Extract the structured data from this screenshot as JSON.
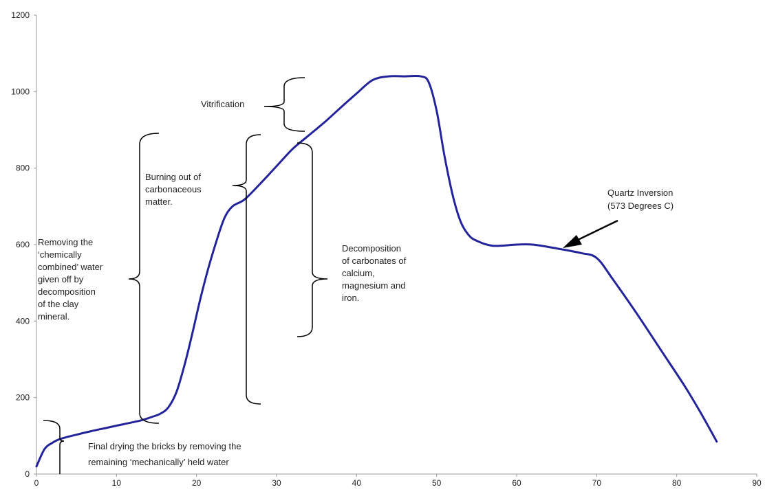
{
  "chart_data": {
    "type": "line",
    "title": "",
    "xlabel": "",
    "ylabel": "",
    "xlim": [
      0,
      90
    ],
    "ylim": [
      0,
      1200
    ],
    "x_ticks": [
      "0",
      "10",
      "20",
      "30",
      "40",
      "50",
      "60",
      "70",
      "80",
      "90"
    ],
    "y_ticks": [
      "0",
      "200",
      "400",
      "600",
      "800",
      "1000",
      "1200"
    ],
    "grid": false,
    "line_color": "#23239a",
    "series": [
      {
        "name": "",
        "points": [
          [
            0,
            20
          ],
          [
            1,
            65
          ],
          [
            2,
            82
          ],
          [
            3,
            92
          ],
          [
            5,
            103
          ],
          [
            7,
            113
          ],
          [
            9,
            122
          ],
          [
            11,
            131
          ],
          [
            13,
            140
          ],
          [
            14.5,
            150
          ],
          [
            15.5,
            158
          ],
          [
            16.5,
            175
          ],
          [
            17.5,
            215
          ],
          [
            18.5,
            285
          ],
          [
            19.5,
            370
          ],
          [
            20.5,
            460
          ],
          [
            21.5,
            540
          ],
          [
            22.5,
            610
          ],
          [
            23.5,
            670
          ],
          [
            24.5,
            700
          ],
          [
            26,
            718
          ],
          [
            28,
            760
          ],
          [
            30,
            805
          ],
          [
            32,
            850
          ],
          [
            34,
            885
          ],
          [
            36,
            920
          ],
          [
            38,
            958
          ],
          [
            40,
            995
          ],
          [
            42,
            1030
          ],
          [
            44,
            1040
          ],
          [
            46,
            1040
          ],
          [
            48,
            1040
          ],
          [
            49,
            1025
          ],
          [
            50,
            950
          ],
          [
            51,
            830
          ],
          [
            52,
            730
          ],
          [
            53,
            660
          ],
          [
            54,
            625
          ],
          [
            55,
            610
          ],
          [
            57,
            597
          ],
          [
            60,
            600
          ],
          [
            62,
            600
          ],
          [
            65,
            590
          ],
          [
            68,
            578
          ],
          [
            70,
            565
          ],
          [
            72,
            510
          ],
          [
            75,
            420
          ],
          [
            78,
            325
          ],
          [
            81,
            230
          ],
          [
            83,
            160
          ],
          [
            85,
            85
          ]
        ]
      }
    ],
    "annotations": {
      "final_drying": {
        "line1": "Final drying the bricks by removing the",
        "line2": "remaining ‘mechanically’ held water",
        "y_range": [
          0,
          140
        ]
      },
      "removing_water": {
        "lines": [
          "Removing the",
          "‘chemically",
          "combined’ water",
          "given off by",
          "decomposition",
          "of the clay",
          "mineral."
        ],
        "y_range": [
          130,
          890
        ]
      },
      "burning_out": {
        "lines": [
          "Burning out of",
          "carbonaceous",
          "matter."
        ],
        "y_range": [
          180,
          885
        ]
      },
      "decomposition": {
        "lines": [
          "Decomposition",
          "of carbonates of",
          "calcium,",
          "magnesium and",
          "iron."
        ],
        "y_range": [
          355,
          860
        ]
      },
      "vitrification": {
        "text": "Vitrification",
        "y_range": [
          890,
          1035
        ]
      },
      "quartz_inversion": {
        "line1": "Quartz Inversion",
        "line2": "(573 Degrees C)"
      }
    }
  }
}
